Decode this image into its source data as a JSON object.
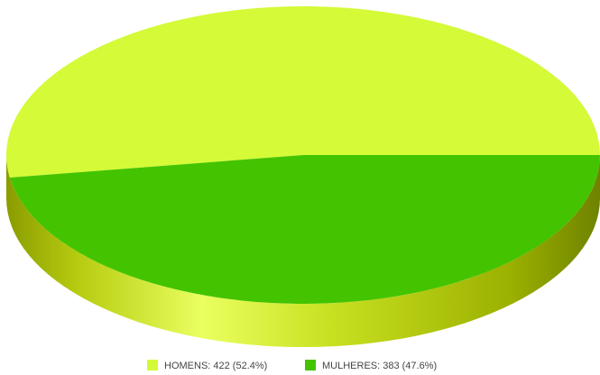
{
  "chart_data": {
    "type": "pie",
    "style": "3d",
    "title": "",
    "slices": [
      {
        "label": "HOMENS: 422 (52.4%)",
        "name": "HOMENS",
        "value": 422,
        "percent": 52.4,
        "color": "#d4fa38"
      },
      {
        "label": "MULHERES: 383 (47.6%)",
        "name": "MULHERES",
        "value": 383,
        "percent": 47.6,
        "color": "#44c400"
      }
    ],
    "legend_position": "bottom"
  }
}
